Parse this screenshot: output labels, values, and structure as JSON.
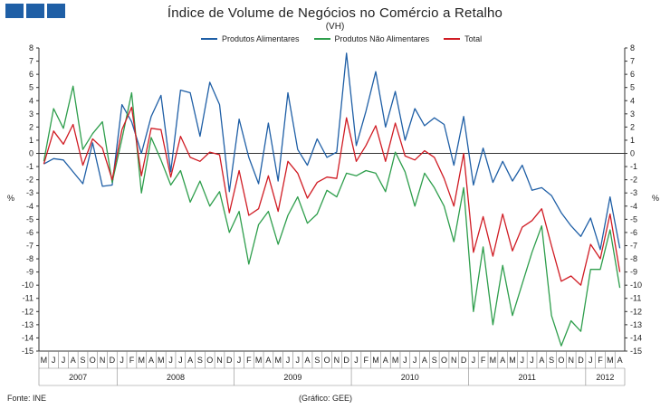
{
  "header": {
    "title": "Índice de Volume de Negócios no Comércio a Retalho",
    "subtitle": "(VH)"
  },
  "footer": {
    "source": "Fonte: INE",
    "credit": "(Gráfico: GEE)"
  },
  "chart_data": {
    "type": "line",
    "title": "Índice de Volume de Negócios no Comércio a Retalho",
    "subtitle": "(VH)",
    "ylabel": "%",
    "ylabel_right": "%",
    "ylim": [
      -15,
      8
    ],
    "yticks": [
      8,
      7,
      6,
      5,
      4,
      3,
      2,
      1,
      0,
      -1,
      -2,
      -3,
      -4,
      -5,
      -6,
      -7,
      -8,
      -9,
      -10,
      -11,
      -12,
      -13,
      -14,
      -15
    ],
    "grid": false,
    "legend_position": "top",
    "month_labels": [
      "M",
      "J",
      "J",
      "A",
      "S",
      "O",
      "N",
      "D",
      "J",
      "F",
      "M",
      "A",
      "M",
      "J",
      "J",
      "A",
      "S",
      "O",
      "N",
      "D",
      "J",
      "F",
      "M",
      "A",
      "M",
      "J",
      "J",
      "A",
      "S",
      "O",
      "N",
      "D",
      "J",
      "F",
      "M",
      "A",
      "M",
      "J",
      "J",
      "A",
      "S",
      "O",
      "N",
      "D",
      "J",
      "F",
      "M",
      "A",
      "M",
      "J",
      "J",
      "A",
      "S",
      "O",
      "N",
      "D",
      "J",
      "F",
      "M",
      "A"
    ],
    "years": [
      {
        "label": "2007",
        "start": 0,
        "end": 8
      },
      {
        "label": "2008",
        "start": 8,
        "end": 20
      },
      {
        "label": "2009",
        "start": 20,
        "end": 32
      },
      {
        "label": "2010",
        "start": 32,
        "end": 44
      },
      {
        "label": "2011",
        "start": 44,
        "end": 56
      },
      {
        "label": "2012",
        "start": 56,
        "end": 60
      }
    ],
    "series": [
      {
        "name": "Produtos Alimentares",
        "color": "#1f5fa6",
        "values": [
          -0.8,
          -0.4,
          -0.5,
          -1.4,
          -2.3,
          0.8,
          -2.5,
          -2.4,
          3.7,
          2.4,
          0.0,
          2.8,
          4.4,
          -1.4,
          4.8,
          4.6,
          1.3,
          5.4,
          3.7,
          -2.9,
          2.6,
          -0.3,
          -2.3,
          2.3,
          -2.1,
          4.6,
          0.3,
          -0.9,
          1.1,
          -0.3,
          0.1,
          7.6,
          0.6,
          3.2,
          6.2,
          2.0,
          4.7,
          1.0,
          3.4,
          2.1,
          2.7,
          2.2,
          -0.9,
          2.8,
          -2.4,
          0.4,
          -2.2,
          -0.6,
          -2.1,
          -0.9,
          -2.8,
          -2.6,
          -3.2,
          -4.5,
          -5.5,
          -6.3,
          -4.9,
          -7.3,
          -3.3,
          -7.2
        ]
      },
      {
        "name": "Produtos Não Alimentares",
        "color": "#2e9e4c",
        "values": [
          -0.6,
          3.4,
          1.9,
          5.1,
          0.3,
          1.5,
          2.4,
          -2.2,
          1.1,
          4.6,
          -3.0,
          1.2,
          -0.5,
          -2.4,
          -1.3,
          -3.7,
          -2.1,
          -4.0,
          -2.9,
          -6.0,
          -4.4,
          -8.4,
          -5.4,
          -4.4,
          -6.9,
          -4.7,
          -3.3,
          -5.3,
          -4.6,
          -2.8,
          -3.3,
          -1.5,
          -1.7,
          -1.3,
          -1.5,
          -2.9,
          0.1,
          -1.4,
          -4.0,
          -1.5,
          -2.6,
          -4.0,
          -6.7,
          -2.6,
          -12.0,
          -7.1,
          -13.0,
          -8.5,
          -12.3,
          -9.9,
          -7.5,
          -5.5,
          -12.3,
          -14.6,
          -12.7,
          -13.5,
          -8.8,
          -8.8,
          -5.8,
          -10.2
        ]
      },
      {
        "name": "Total",
        "color": "#d01c24",
        "values": [
          -0.8,
          1.7,
          0.7,
          2.2,
          -0.9,
          1.1,
          0.4,
          -2.0,
          1.8,
          3.5,
          -1.7,
          1.9,
          1.8,
          -1.8,
          1.3,
          -0.3,
          -0.6,
          0.1,
          -0.1,
          -4.5,
          -1.3,
          -4.7,
          -4.2,
          -1.7,
          -4.4,
          -0.6,
          -1.5,
          -3.4,
          -2.2,
          -1.8,
          -1.9,
          2.7,
          -0.6,
          0.6,
          2.1,
          -0.6,
          2.3,
          -0.2,
          -0.5,
          0.2,
          -0.3,
          -1.9,
          -4.0,
          0.0,
          -7.5,
          -4.8,
          -7.8,
          -4.6,
          -7.4,
          -5.6,
          -5.1,
          -4.2,
          -7.0,
          -9.7,
          -9.3,
          -10.0,
          -6.9,
          -8.0,
          -4.6,
          -9.0
        ]
      }
    ]
  }
}
